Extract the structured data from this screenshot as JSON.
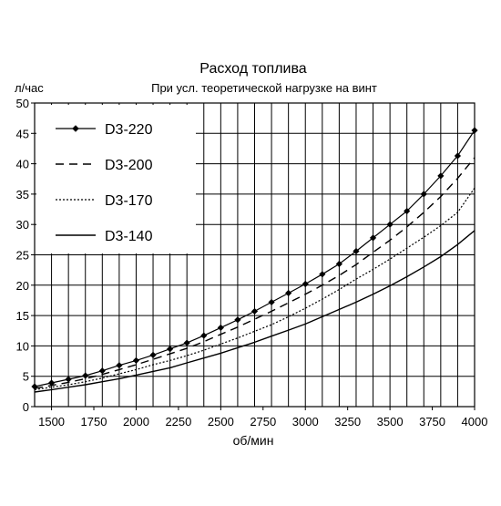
{
  "chart_data": {
    "type": "line",
    "title": "Расход топлива",
    "subtitle": "При усл. теоретической нагрузке на винт",
    "xlabel": "об/мин",
    "ylabel": "л/час",
    "xlim": [
      1400,
      4000
    ],
    "ylim": [
      0,
      50
    ],
    "xticks": [
      1500,
      1750,
      2000,
      2250,
      2500,
      2750,
      3000,
      3250,
      3500,
      3750,
      4000
    ],
    "yticks": [
      0,
      5,
      10,
      15,
      20,
      25,
      30,
      35,
      40,
      45,
      50
    ],
    "x_gridlines": [
      1400,
      1500,
      1600,
      1700,
      1800,
      1900,
      2000,
      2100,
      2200,
      2300,
      2400,
      2500,
      2600,
      2700,
      2800,
      2900,
      3000,
      3100,
      3200,
      3300,
      3400,
      3500,
      3600,
      3700,
      3800,
      3900,
      4000
    ],
    "grid": true,
    "legend_position": "top-left",
    "series": [
      {
        "name": "D3-220",
        "style": "solid-diamond",
        "x": [
          1400,
          1500,
          1600,
          1700,
          1800,
          1900,
          2000,
          2100,
          2200,
          2300,
          2400,
          2500,
          2600,
          2700,
          2800,
          2900,
          3000,
          3100,
          3200,
          3300,
          3400,
          3500,
          3600,
          3700,
          3800,
          3900,
          4000
        ],
        "y": [
          3.3,
          3.9,
          4.5,
          5.1,
          5.9,
          6.8,
          7.6,
          8.5,
          9.5,
          10.5,
          11.7,
          13.0,
          14.3,
          15.7,
          17.2,
          18.7,
          20.2,
          21.8,
          23.5,
          25.6,
          27.8,
          30.0,
          32.2,
          35.0,
          38.0,
          41.3,
          45.5
        ]
      },
      {
        "name": "D3-200",
        "style": "dashed",
        "x": [
          1400,
          1500,
          1600,
          1700,
          1800,
          1900,
          2000,
          2100,
          2200,
          2300,
          2400,
          2500,
          2600,
          2700,
          2800,
          2900,
          3000,
          3100,
          3200,
          3300,
          3400,
          3500,
          3600,
          3700,
          3800,
          3900,
          4000
        ],
        "y": [
          3.0,
          3.5,
          4.0,
          4.6,
          5.3,
          6.1,
          6.9,
          7.8,
          8.7,
          9.6,
          10.7,
          11.9,
          13.1,
          14.4,
          15.7,
          17.1,
          18.5,
          20.0,
          21.6,
          23.4,
          25.4,
          27.4,
          29.6,
          32.0,
          34.6,
          37.6,
          41.0
        ]
      },
      {
        "name": "D3-170",
        "style": "dotted",
        "x": [
          1400,
          1500,
          1600,
          1700,
          1800,
          1900,
          2000,
          2100,
          2200,
          2300,
          2400,
          2500,
          2600,
          2700,
          2800,
          2900,
          3000,
          3100,
          3200,
          3300,
          3400,
          3500,
          3600,
          3700,
          3800,
          3900,
          4000
        ],
        "y": [
          2.8,
          3.2,
          3.6,
          4.1,
          4.7,
          5.4,
          6.1,
          6.9,
          7.6,
          8.4,
          9.3,
          10.3,
          11.3,
          12.4,
          13.5,
          14.8,
          16.2,
          17.7,
          19.3,
          21.0,
          22.6,
          24.3,
          26.1,
          27.9,
          29.8,
          32.0,
          36.0
        ]
      },
      {
        "name": "D3-140",
        "style": "solid",
        "x": [
          1400,
          1500,
          1600,
          1700,
          1800,
          1900,
          2000,
          2100,
          2200,
          2300,
          2400,
          2500,
          2600,
          2700,
          2800,
          2900,
          3000,
          3100,
          3200,
          3300,
          3400,
          3500,
          3600,
          3700,
          3800,
          3900,
          4000
        ],
        "y": [
          2.4,
          2.8,
          3.2,
          3.6,
          4.1,
          4.6,
          5.2,
          5.8,
          6.4,
          7.2,
          8.0,
          8.8,
          9.7,
          10.6,
          11.6,
          12.6,
          13.6,
          14.8,
          16.0,
          17.2,
          18.5,
          19.9,
          21.4,
          23.0,
          24.7,
          26.7,
          29.0
        ]
      }
    ]
  }
}
